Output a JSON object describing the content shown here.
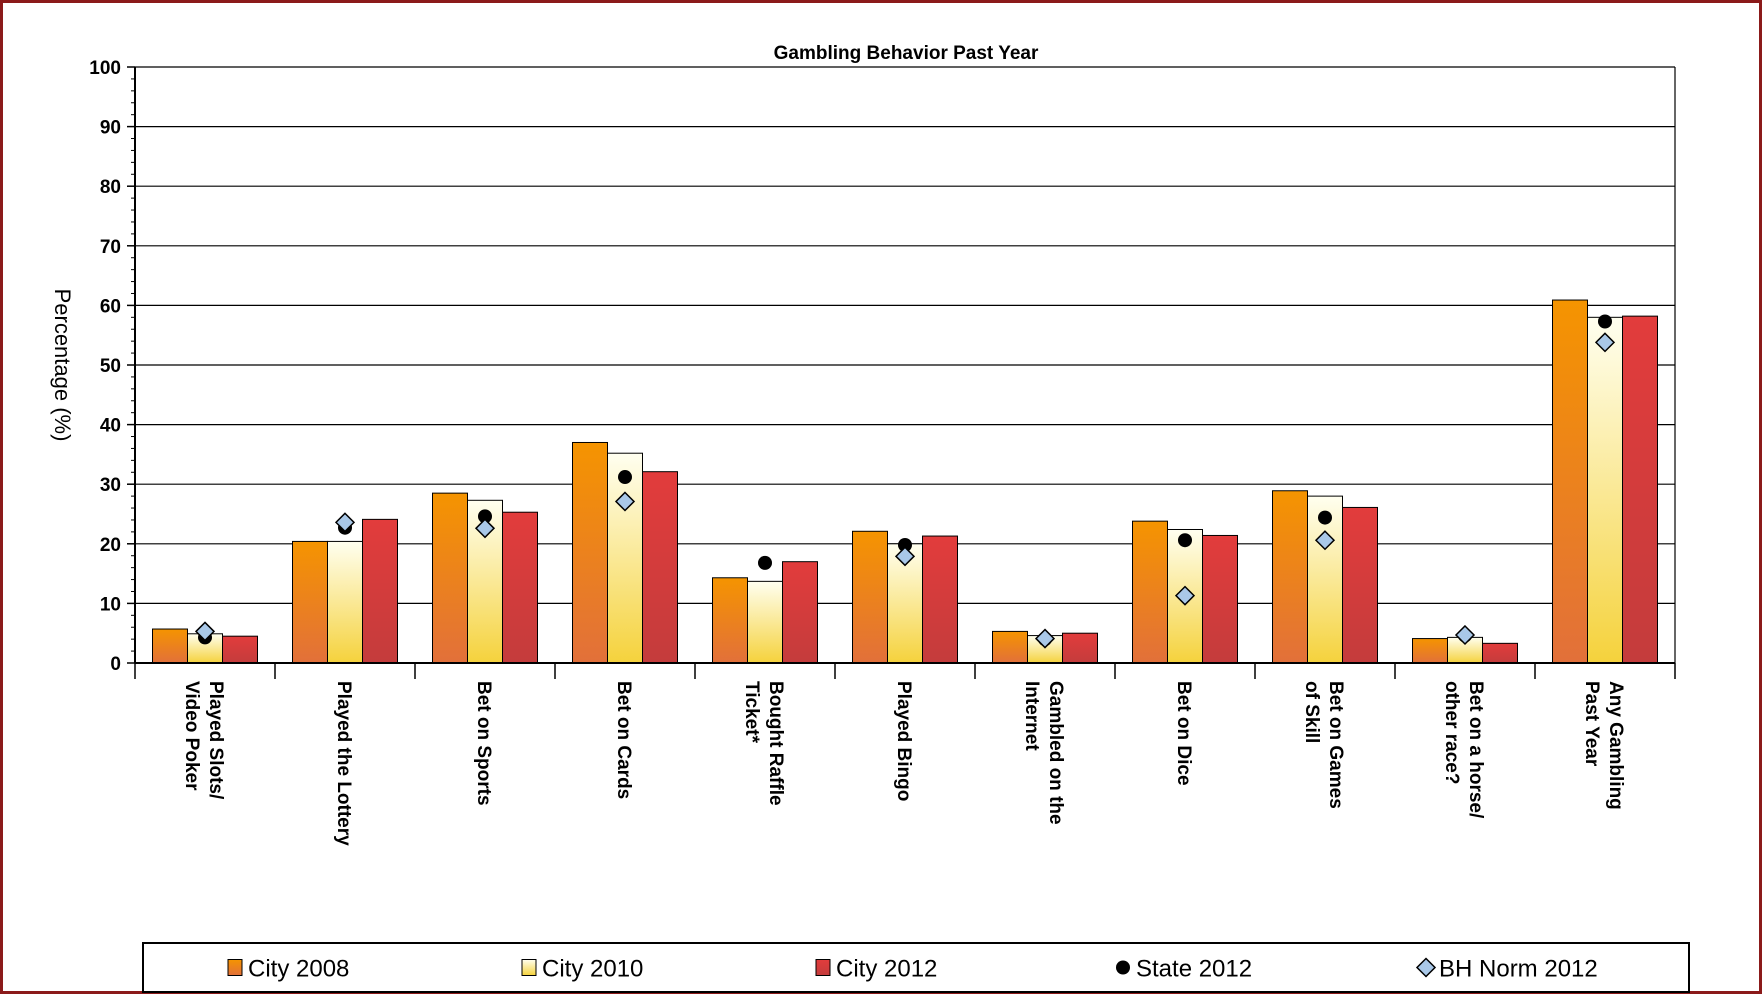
{
  "chart_data": {
    "type": "bar",
    "title": "Gambling Behavior Past Year",
    "ylabel": "Percentage (%)",
    "ylim": [
      0,
      100
    ],
    "yticks": [
      0,
      10,
      20,
      30,
      40,
      50,
      60,
      70,
      80,
      90,
      100
    ],
    "grid": true,
    "legend_position": "bottom",
    "categories": [
      [
        "Played Slots/",
        "Video Poker"
      ],
      [
        "Played the Lottery"
      ],
      [
        "Bet on Sports"
      ],
      [
        "Bet on Cards"
      ],
      [
        "Bought Raffle",
        "Ticket*"
      ],
      [
        "Played Bingo"
      ],
      [
        "Gambled on the",
        "Internet"
      ],
      [
        "Bet on Dice"
      ],
      [
        "Bet on Games",
        "of Skill"
      ],
      [
        "Bet on a horse/",
        "other race?"
      ],
      [
        "Any Gambling",
        "Past Year"
      ]
    ],
    "series": [
      {
        "name": "City 2008",
        "kind": "bar",
        "color": "#f28c00",
        "values": [
          5.7,
          20.4,
          28.5,
          37.0,
          14.3,
          22.1,
          5.3,
          23.8,
          28.9,
          4.1,
          60.9
        ]
      },
      {
        "name": "City 2010",
        "kind": "bar",
        "color": "#fff2a8",
        "values": [
          4.9,
          20.4,
          27.3,
          35.2,
          13.7,
          20.0,
          4.6,
          22.4,
          28.0,
          4.3,
          58.0
        ]
      },
      {
        "name": "City 2012",
        "kind": "bar",
        "color": "#d93636",
        "values": [
          4.5,
          24.1,
          25.3,
          32.1,
          17.0,
          21.3,
          5.0,
          21.4,
          26.1,
          3.3,
          58.2
        ]
      },
      {
        "name": "State 2012",
        "kind": "marker",
        "marker": "circle",
        "color": "#000000",
        "values": [
          4.3,
          22.7,
          24.6,
          31.2,
          16.8,
          19.8,
          4.0,
          20.6,
          24.4,
          4.6,
          57.3
        ]
      },
      {
        "name": "BH Norm 2012",
        "kind": "marker",
        "marker": "diamond",
        "color": "#a9c8e8",
        "values": [
          5.3,
          23.6,
          22.6,
          27.1,
          null,
          17.9,
          4.1,
          11.3,
          20.6,
          4.7,
          53.8
        ]
      }
    ]
  }
}
